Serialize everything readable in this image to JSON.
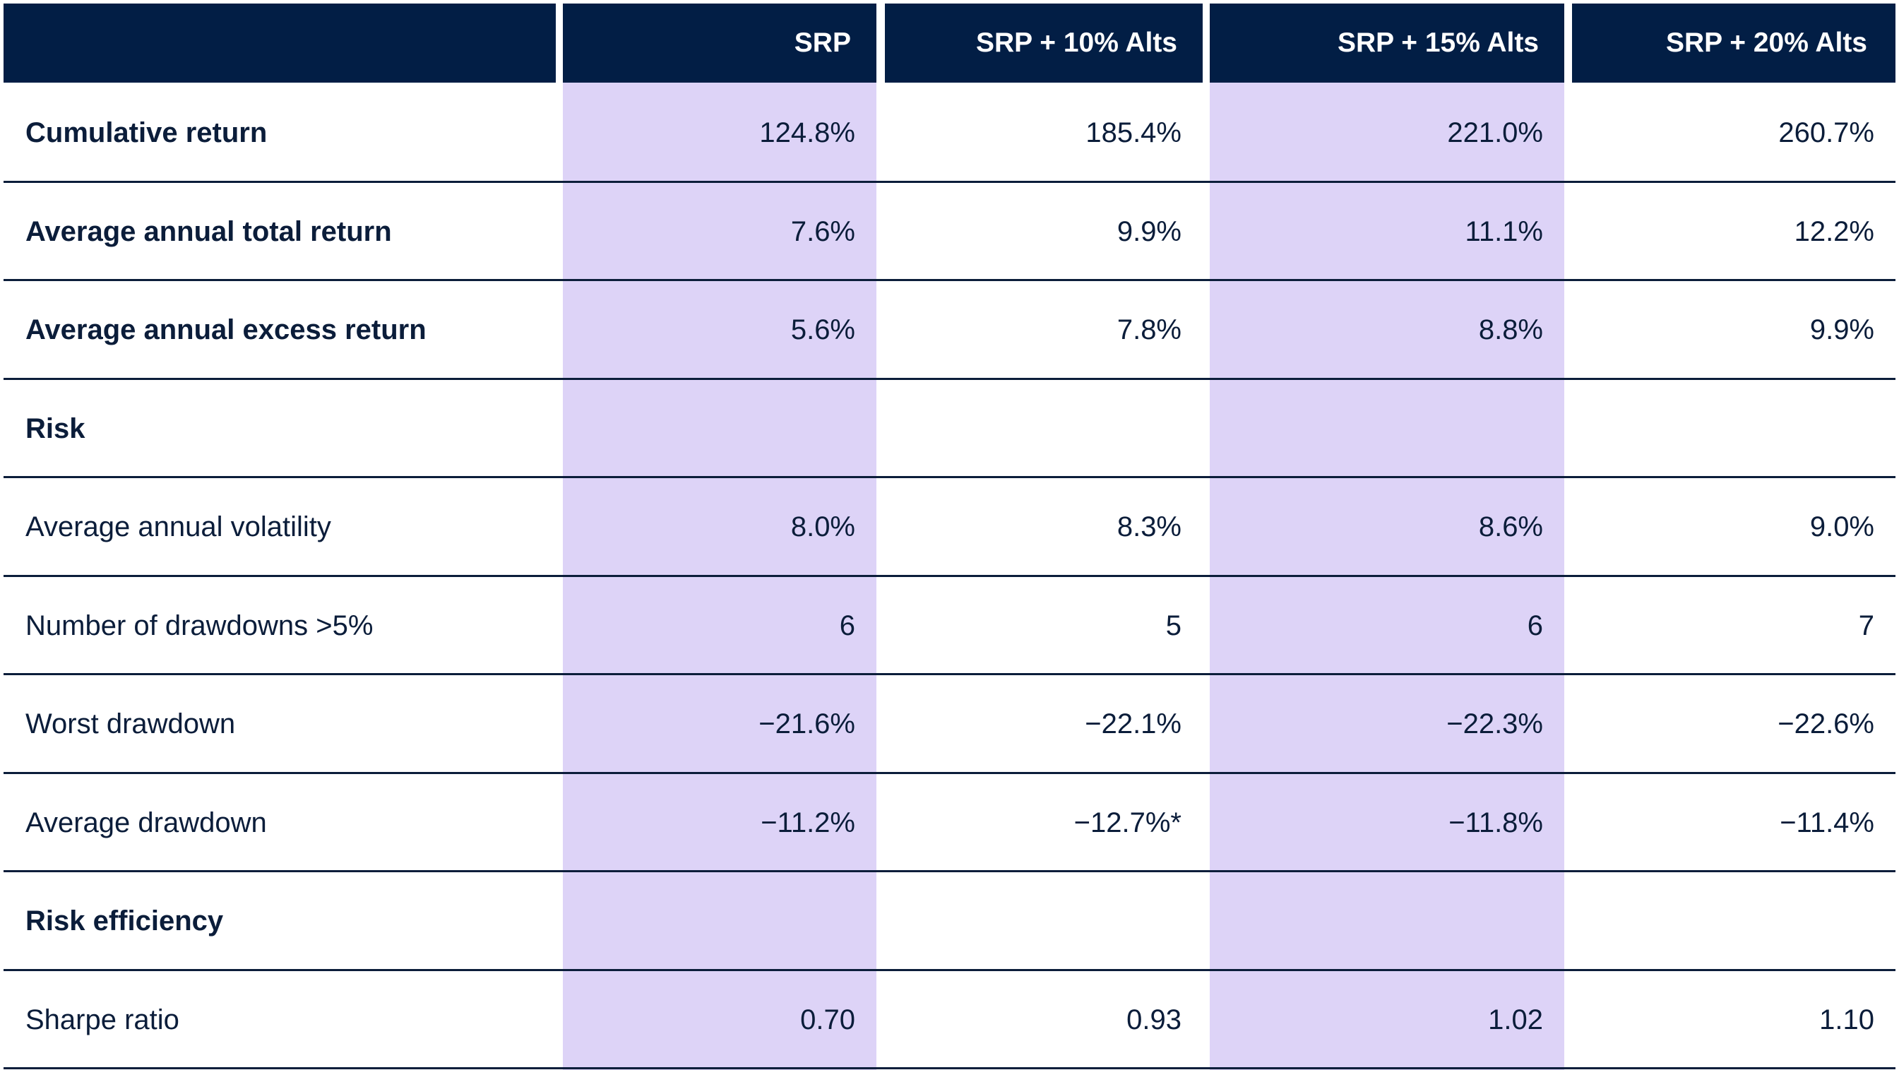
{
  "table": {
    "columns": [
      "",
      "SRP",
      "SRP + 10% Alts",
      "SRP + 15% Alts",
      "SRP + 20% Alts"
    ],
    "rows": [
      {
        "label": "Cumulative return",
        "bold": true,
        "values": [
          "124.8%",
          "185.4%",
          "221.0%",
          "260.7%"
        ]
      },
      {
        "label": "Average annual total return",
        "bold": true,
        "values": [
          "7.6%",
          "9.9%",
          "11.1%",
          "12.2%"
        ]
      },
      {
        "label": "Average annual excess return",
        "bold": true,
        "values": [
          "5.6%",
          "7.8%",
          "8.8%",
          "9.9%"
        ]
      },
      {
        "label": "Risk",
        "bold": true,
        "values": [
          "",
          "",
          "",
          ""
        ]
      },
      {
        "label": "Average annual volatility",
        "bold": false,
        "values": [
          "8.0%",
          "8.3%",
          "8.6%",
          "9.0%"
        ]
      },
      {
        "label": "Number of drawdowns >5%",
        "bold": false,
        "values": [
          "6",
          "5",
          "6",
          "7"
        ]
      },
      {
        "label": "Worst drawdown",
        "bold": false,
        "values": [
          "−21.6%",
          "−22.1%",
          "−22.3%",
          "−22.6%"
        ]
      },
      {
        "label": "Average drawdown",
        "bold": false,
        "values": [
          "−11.2%",
          "−12.7%*",
          "−11.8%",
          "−11.4%"
        ]
      },
      {
        "label": "Risk efficiency",
        "bold": true,
        "values": [
          "",
          "",
          "",
          ""
        ]
      },
      {
        "label": "Sharpe ratio",
        "bold": false,
        "values": [
          "0.70",
          "0.93",
          "1.02",
          "1.10"
        ]
      }
    ]
  },
  "colors": {
    "header_bg": "#021e45",
    "header_text": "#ffffff",
    "highlight_column": "#ddd3f7",
    "text": "#0b1d3a"
  }
}
